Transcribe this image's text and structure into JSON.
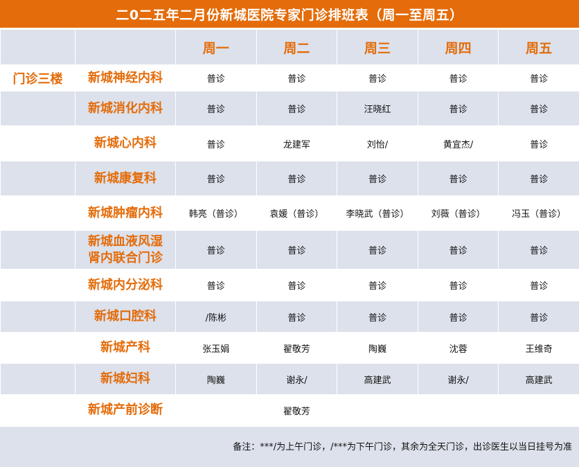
{
  "title": "二0二五年二月份新城医院专家门诊排班表（周一至周五）",
  "days": [
    "周一",
    "周二",
    "周三",
    "周四",
    "周五"
  ],
  "rows": [
    {
      "floor": "门诊三楼",
      "dept": "新城神经内科",
      "cells": [
        "普诊",
        "普诊",
        "普诊",
        "普诊",
        "普诊"
      ]
    },
    {
      "floor": "",
      "dept": "新城消化内科",
      "cells": [
        "普诊",
        "普诊",
        "汪晓红",
        "普诊",
        "普诊"
      ]
    },
    {
      "floor": "",
      "dept": "新城心内科",
      "cells": [
        "普诊",
        "龙建军",
        "刘怡/",
        "黄宜杰/",
        "普诊"
      ]
    },
    {
      "floor": "",
      "dept": "新城康复科",
      "cells": [
        "普诊",
        "普诊",
        "普诊",
        "普诊",
        "普诊"
      ]
    },
    {
      "floor": "",
      "dept": "新城肿瘤内科",
      "cells": [
        "韩亮（普诊）",
        "袁媛（普诊）",
        "李晓武（普诊）",
        "刘薇（普诊）",
        "冯玉（普诊）"
      ]
    },
    {
      "floor": "",
      "dept": "新城血液风湿肾内联合门诊",
      "dept_lines": [
        "新城血液风湿",
        "肾内联合门诊"
      ],
      "cells": [
        "普诊",
        "普诊",
        "普诊",
        "普诊",
        "普诊"
      ]
    },
    {
      "floor": "",
      "dept": "新城内分泌科",
      "cells": [
        "普诊",
        "普诊",
        "普诊",
        "普诊",
        "普诊"
      ]
    },
    {
      "floor": "",
      "dept": "新城口腔科",
      "cells": [
        "/陈彬",
        "普诊",
        "普诊",
        "普诊",
        "普诊"
      ]
    },
    {
      "floor": "",
      "dept": "新城产科",
      "cells": [
        "张玉娟",
        "翟敬芳",
        "陶巍",
        "沈蓉",
        "王维奇"
      ]
    },
    {
      "floor": "",
      "dept": "新城妇科",
      "cells": [
        "陶巍",
        "谢永/",
        "高建武",
        "谢永/",
        "高建武"
      ]
    },
    {
      "floor": "",
      "dept": "新城产前诊断",
      "cells": [
        "",
        "翟敬芳",
        "",
        "",
        ""
      ]
    }
  ],
  "note": "备注：***/为上午门诊，/***为下午门诊，其余为全天门诊，出诊医生以当日挂号为准",
  "colors": {
    "accent": "#E46C0A",
    "band": "#DCE1EB",
    "white": "#FFFFFF"
  }
}
